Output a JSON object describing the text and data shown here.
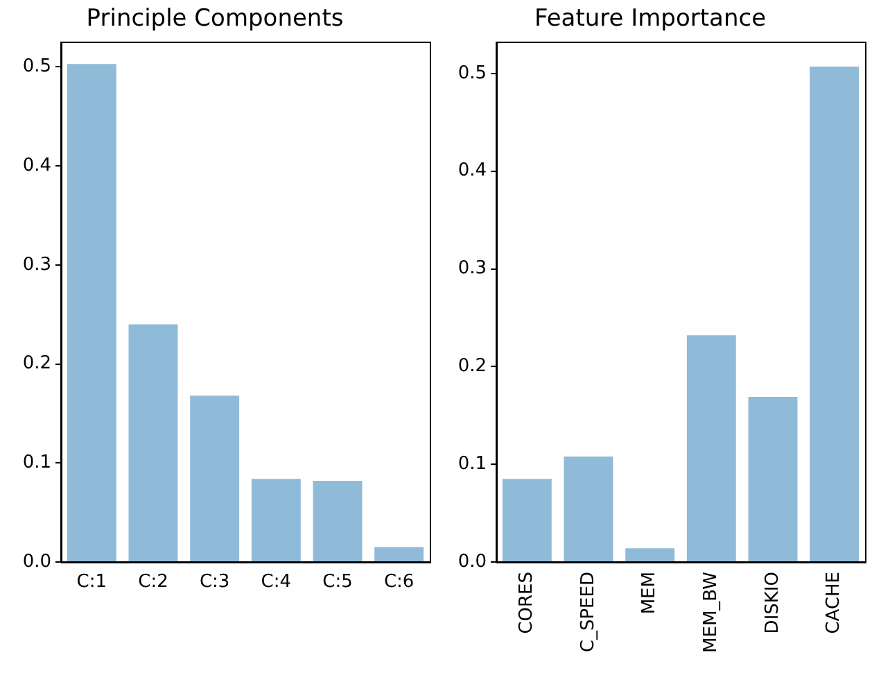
{
  "chart_data": [
    {
      "type": "bar",
      "title": "Principle Components",
      "categories": [
        "C:1",
        "C:2",
        "C:3",
        "C:4",
        "C:5",
        "C:6"
      ],
      "values": [
        0.503,
        0.24,
        0.168,
        0.084,
        0.082,
        0.015
      ],
      "color": "#8fbbd9",
      "ylim": [
        0,
        0.525
      ],
      "yticks": [
        {
          "value": 0,
          "label": "0.0"
        },
        {
          "value": 0.1,
          "label": "0.1"
        },
        {
          "value": 0.2,
          "label": "0.2"
        },
        {
          "value": 0.3,
          "label": "0.3"
        },
        {
          "value": 0.4,
          "label": "0.4"
        },
        {
          "value": 0.5,
          "label": "0.5"
        }
      ],
      "grid": false,
      "legend": false
    },
    {
      "type": "bar",
      "title": "Feature Importance",
      "categories": [
        "CORES",
        "C_SPEED",
        "MEM",
        "MEM_BW",
        "DISKIO",
        "CACHE"
      ],
      "values": [
        0.085,
        0.108,
        0.014,
        0.232,
        0.169,
        0.507
      ],
      "color": "#8fbbd9",
      "ylim": [
        0,
        0.532
      ],
      "yticks": [
        {
          "value": 0,
          "label": "0.0"
        },
        {
          "value": 0.1,
          "label": "0.1"
        },
        {
          "value": 0.2,
          "label": "0.2"
        },
        {
          "value": 0.3,
          "label": "0.3"
        },
        {
          "value": 0.4,
          "label": "0.4"
        },
        {
          "value": 0.5,
          "label": "0.5"
        }
      ],
      "grid": false,
      "legend": false
    }
  ]
}
